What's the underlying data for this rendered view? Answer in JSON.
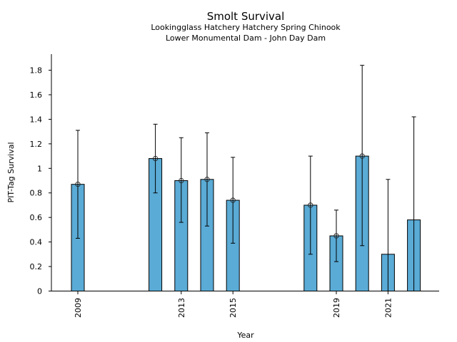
{
  "chart_data": {
    "type": "bar",
    "title": "Smolt Survival",
    "subtitle_lines": [
      "Lookingglass Hatchery Hatchery Spring Chinook",
      "Lower Monumental Dam - John Day Dam"
    ],
    "xlabel": "Year",
    "ylabel": "PIT-Tag Survival",
    "ylim": [
      0,
      1.93
    ],
    "xlim": [
      2008.2,
      2023.0
    ],
    "yticks": [
      0,
      0.2,
      0.4,
      0.6,
      0.8,
      1,
      1.2,
      1.4,
      1.6,
      1.8
    ],
    "ytick_labels": [
      "0",
      "0.2",
      "0.4",
      "0.6",
      "0.8",
      "1",
      "1.2",
      "1.4",
      "1.6",
      "1.8"
    ],
    "xticks": [
      2009,
      2013,
      2015,
      2019,
      2021
    ],
    "xtick_labels": [
      "2009",
      "2013",
      "2015",
      "2019",
      "2021"
    ],
    "grid": false,
    "bar_color": "#5aabd6",
    "edge_color": "#000000",
    "series": [
      {
        "name": "PIT-Tag Survival",
        "points": [
          {
            "year": 2009,
            "value": 0.87,
            "lower": 0.43,
            "upper": 1.31,
            "marker": true
          },
          {
            "year": 2012,
            "value": 1.08,
            "lower": 0.8,
            "upper": 1.36,
            "marker": true
          },
          {
            "year": 2013,
            "value": 0.9,
            "lower": 0.56,
            "upper": 1.25,
            "marker": true
          },
          {
            "year": 2014,
            "value": 0.91,
            "lower": 0.53,
            "upper": 1.29,
            "marker": true
          },
          {
            "year": 2015,
            "value": 0.74,
            "lower": 0.39,
            "upper": 1.09,
            "marker": true
          },
          {
            "year": 2018,
            "value": 0.7,
            "lower": 0.3,
            "upper": 1.1,
            "marker": true
          },
          {
            "year": 2019,
            "value": 0.45,
            "lower": 0.24,
            "upper": 0.66,
            "marker": true
          },
          {
            "year": 2020,
            "value": 1.1,
            "lower": 0.37,
            "upper": 1.84,
            "marker": true
          },
          {
            "year": 2021,
            "value": 0.3,
            "lower": 0,
            "upper": 0.91,
            "marker": false
          },
          {
            "year": 2022,
            "value": 0.58,
            "lower": 0,
            "upper": 1.42,
            "marker": false
          }
        ]
      }
    ]
  }
}
